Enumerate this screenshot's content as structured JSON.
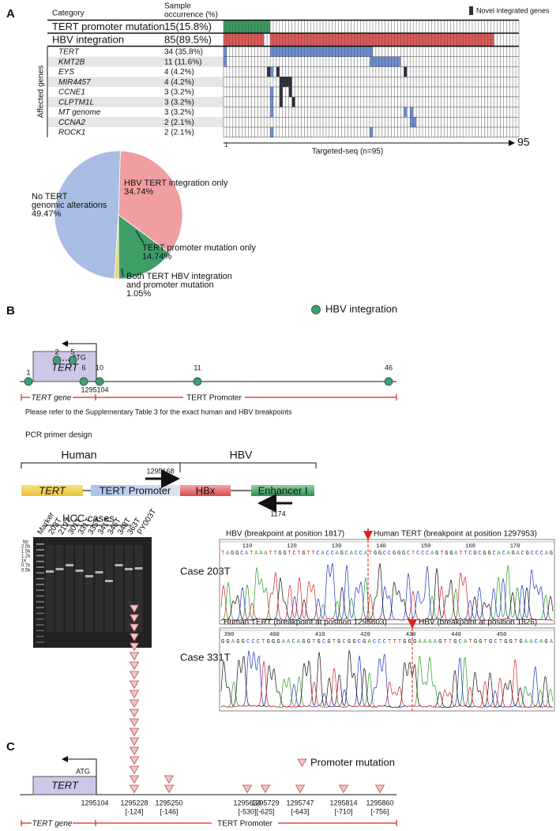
{
  "panel_a": {
    "label": "A",
    "header": {
      "category": "Category",
      "occurrence": [
        "Sample",
        "occurrence (%)"
      ]
    },
    "legend": {
      "label": "Novel integrated genes",
      "color": "#2e2e3c"
    },
    "rows": [
      {
        "name": "TERT promoter mutation",
        "occurrence": "15(15.8%)",
        "color": "#3a9a60",
        "samples": [
          1,
          2,
          3,
          4,
          5,
          6,
          7,
          8,
          9,
          10,
          11,
          12,
          13,
          14,
          15
        ]
      },
      {
        "name": "HBV integration",
        "occurrence": "85(89.5%)",
        "color": "#e05858",
        "samples": [
          1,
          2,
          3,
          4,
          5,
          6,
          7,
          8,
          9,
          10,
          11,
          12,
          13,
          16,
          17,
          18,
          19,
          20,
          21,
          22,
          23,
          24,
          25,
          26,
          27,
          28,
          29,
          30,
          31,
          32,
          33,
          34,
          35,
          36,
          37,
          38,
          39,
          40,
          41,
          42,
          43,
          44,
          45,
          46,
          47,
          48,
          49,
          50,
          51,
          52,
          53,
          54,
          55,
          56,
          57,
          58,
          59,
          60,
          61,
          62,
          63,
          64,
          65,
          66,
          67,
          68,
          69,
          70,
          71,
          72,
          73,
          74,
          75,
          76,
          77,
          78,
          79,
          80,
          81,
          82,
          83,
          84,
          85,
          86,
          87
        ]
      }
    ],
    "genes_label": "Affected genes",
    "gene_color": "#6d8fd3",
    "genes": [
      {
        "name": "TERT",
        "occurrence": "34 (35.8%)",
        "samples": [
          1,
          16,
          17,
          18,
          19,
          20,
          21,
          22,
          23,
          24,
          25,
          26,
          27,
          28,
          29,
          30,
          31,
          32,
          33,
          34,
          35,
          36,
          37,
          38,
          39,
          40,
          41,
          42,
          43,
          44,
          45,
          46,
          47,
          48
        ],
        "novel": []
      },
      {
        "name": "KMT2B",
        "occurrence": "11 (11.6%)",
        "samples": [
          1,
          48,
          49,
          50,
          51,
          52,
          53,
          54,
          55,
          56,
          57
        ],
        "novel": []
      },
      {
        "name": "EYS",
        "occurrence": "4 (4.2%)",
        "samples": [
          16
        ],
        "novel": [
          15,
          18,
          59
        ]
      },
      {
        "name": "MIR4457",
        "occurrence": "4 (4.2%)",
        "samples": [],
        "novel": [
          19,
          20,
          21,
          22
        ]
      },
      {
        "name": "CCNE1",
        "occurrence": "3 (3.2%)",
        "samples": [
          16
        ],
        "novel": [
          19,
          22
        ]
      },
      {
        "name": "CLPTM1L",
        "occurrence": "3 (3.2%)",
        "samples": [
          16
        ],
        "novel": [
          19,
          23
        ]
      },
      {
        "name": "MT genome",
        "occurrence": "3 (3.2%)",
        "samples": [
          16,
          59,
          61
        ],
        "novel": []
      },
      {
        "name": "CCNA2",
        "occurrence": "2 (2.1%)",
        "samples": [
          61,
          62
        ],
        "novel": []
      },
      {
        "name": "ROCK1",
        "occurrence": "2 (2.1%)",
        "samples": [
          16,
          48
        ],
        "novel": []
      }
    ],
    "xlim": [
      1,
      95
    ],
    "x_label": "Targeted-seq (n=95)",
    "pie": {
      "type": "pie",
      "slices": [
        {
          "label_lines": [
            "HBV TERT integration only"
          ],
          "value": 34.74,
          "value_label": "34.74%",
          "color": "#f09ea0"
        },
        {
          "label_lines": [
            "TERT promoter mutation only"
          ],
          "value": 14.74,
          "value_label": "14.74%",
          "color": "#3e9e68"
        },
        {
          "label_lines": [
            "Both TERT HBV integration",
            "and promoter mutation"
          ],
          "value": 1.05,
          "value_label": "1.05%",
          "color": "#f2d36a"
        },
        {
          "label_lines": [
            "No TERT",
            "genomic alterations"
          ],
          "value": 49.47,
          "value_label": "49.47%",
          "color": "#a9bde4"
        }
      ]
    }
  },
  "panel_b": {
    "label": "B",
    "legend": {
      "label": "HBV integration",
      "color": "#3aa070"
    },
    "gene": "TERT",
    "atg": "ATG",
    "position": "1295104",
    "sites": [
      1,
      2,
      5,
      6,
      10,
      11,
      46
    ],
    "regions": [
      "TERT gene",
      "TERT Promoter"
    ],
    "note": "Please refer to the Supplementary Table 3 for the exact human and HBV breakpoints",
    "pcr": {
      "title": "PCR primer design",
      "human": "Human",
      "hbv": "HBV",
      "segments": [
        "TERT",
        "TERT Promoter",
        "HBx",
        "Enhancer I"
      ],
      "forward": "1295168",
      "reverse": "1174"
    },
    "gel": {
      "title": "HCC cases",
      "lanes": [
        "Marker",
        "203T",
        "219T",
        "301T",
        "331T",
        "335T",
        "341T",
        "346T",
        "348T",
        "363T",
        "PY003T"
      ],
      "unit": "bp",
      "sizes": [
        "2.0k",
        "1.5k",
        "1.2k",
        "1k",
        "0.7k",
        "0.5k"
      ]
    },
    "cases": [
      {
        "name": "Case 203T",
        "left": "HBV (breakpoint at position 1817)",
        "right": "Human TERT (breakpoint at position 1297953)",
        "ruler": [
          110,
          120,
          130,
          140,
          150,
          160,
          170
        ],
        "sequence": "TAGGCATAAATTGGTCTGTTCACCAGCACCATGGCCGGGCTCCCAGTGGATTCGCGGCACAGACGCCCAG"
      },
      {
        "name": "Case 331T",
        "left": "Human TERT (breakpoint at position 1295603)",
        "right": "HBV (breakpoint at position 1826)",
        "ruler": [
          390,
          400,
          410,
          420,
          430,
          440,
          450
        ],
        "sequence": "GGAGGCCCTGGGAACAGGTGCGTGCGGCGACCCTTTGGGAAAAGTTGCATGGTGCTGGTGAACAGA"
      }
    ]
  },
  "panel_c": {
    "label": "C",
    "legend": "Promoter mutation",
    "gene": "TERT",
    "atg": "ATG",
    "position": "1295104",
    "mutations": [
      {
        "position": "1295228",
        "offset": "[-124]",
        "count": 20
      },
      {
        "position": "1295250",
        "offset": "[-146]",
        "count": 2
      },
      {
        "position": "1295634",
        "offset": "[-530]",
        "count": 1
      },
      {
        "position": "1295729",
        "offset": "[-625]",
        "count": 1
      },
      {
        "position": "1295747",
        "offset": "[-643]",
        "count": 1
      },
      {
        "position": "1295814",
        "offset": "[-710]",
        "count": 1
      },
      {
        "position": "1295860",
        "offset": "[-756]",
        "count": 1
      }
    ],
    "regions": [
      "TERT gene",
      "TERT Promoter"
    ]
  }
}
